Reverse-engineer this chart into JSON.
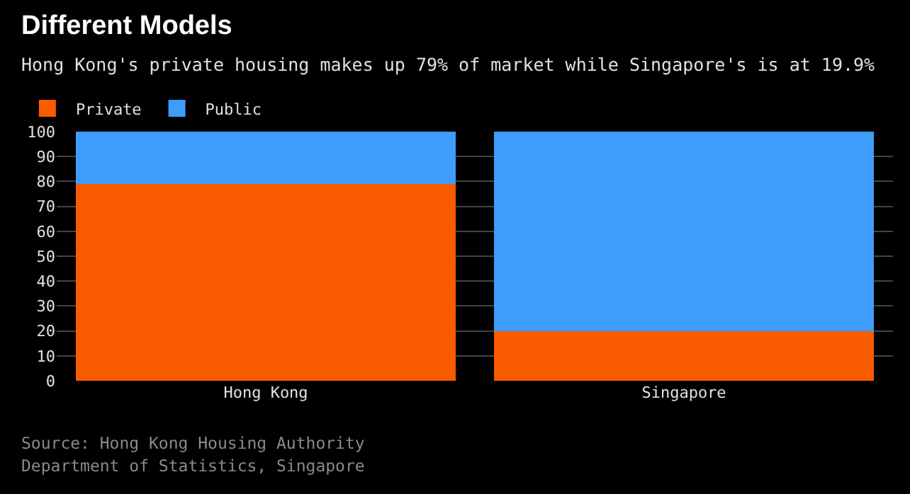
{
  "chart_data": {
    "type": "bar",
    "title": "Different Models",
    "subtitle": "Hong Kong's private housing makes up 79% of market while Singapore's is at 19.9%",
    "categories": [
      "Hong Kong",
      "Singapore"
    ],
    "stacked": true,
    "series": [
      {
        "name": "Private",
        "color": "#fa5a00",
        "values": [
          79,
          19.9
        ]
      },
      {
        "name": "Public",
        "color": "#3e9cfa",
        "values": [
          21,
          80.1
        ]
      }
    ],
    "ylim": [
      0,
      100
    ],
    "yticks": [
      0,
      10,
      20,
      30,
      40,
      50,
      60,
      70,
      80,
      90,
      100
    ],
    "grid": "y",
    "legend": "top left",
    "annotations": [
      "Source: Hong Kong Housing Authority",
      "Department of Statistics, Singapore"
    ]
  }
}
